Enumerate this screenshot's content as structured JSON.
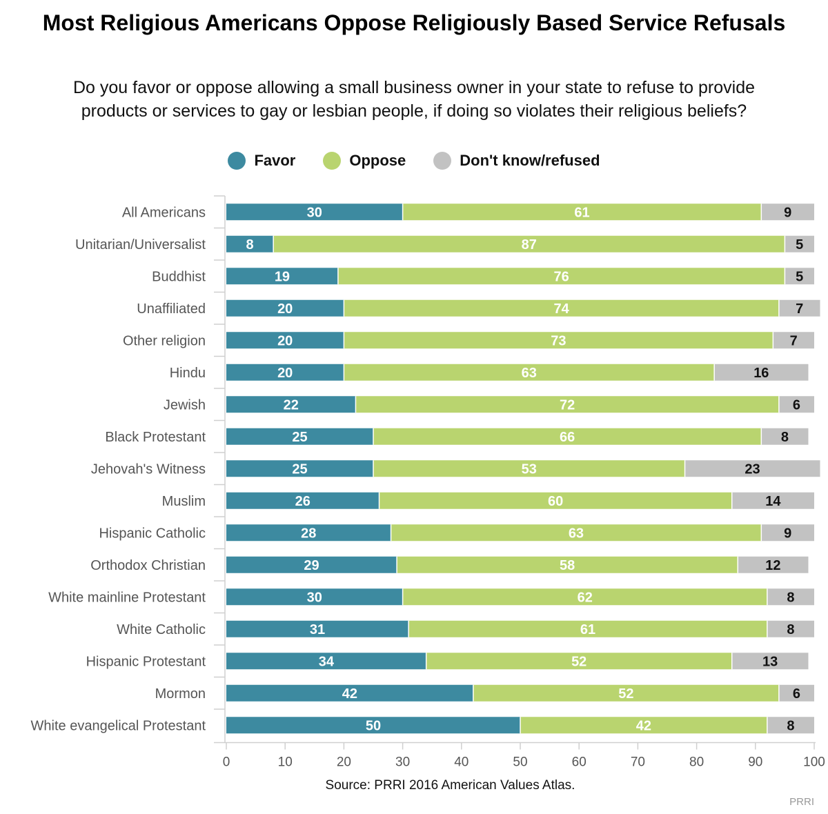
{
  "chart_data": {
    "type": "bar",
    "orientation": "horizontal",
    "stacked": true,
    "title": "Most Religious Americans Oppose Religiously Based Service Refusals",
    "subtitle": "Do you favor or oppose allowing a small business owner in your state to refuse to provide products or services to gay or lesbian people, if doing so violates their religious beliefs?",
    "categories": [
      "All Americans",
      "Unitarian/Universalist",
      "Buddhist",
      "Unaffiliated",
      "Other religion",
      "Hindu",
      "Jewish",
      "Black Protestant",
      "Jehovah's Witness",
      "Muslim",
      "Hispanic Catholic",
      "Orthodox Christian",
      "White mainline Protestant",
      "White Catholic",
      "Hispanic Protestant",
      "Mormon",
      "White evangelical Protestant"
    ],
    "series": [
      {
        "name": "Favor",
        "color": "#3d8aa0",
        "label_color": "#ffffff",
        "values": [
          30,
          8,
          19,
          20,
          20,
          20,
          22,
          25,
          25,
          26,
          28,
          29,
          30,
          31,
          34,
          42,
          50
        ]
      },
      {
        "name": "Oppose",
        "color": "#b9d46f",
        "label_color": "#ffffff",
        "values": [
          61,
          87,
          76,
          74,
          73,
          63,
          72,
          66,
          53,
          60,
          63,
          58,
          62,
          61,
          52,
          52,
          42
        ]
      },
      {
        "name": "Don't know/refused",
        "color": "#c2c2c2",
        "label_color": "#111111",
        "values": [
          9,
          5,
          5,
          7,
          7,
          16,
          6,
          8,
          23,
          14,
          9,
          12,
          8,
          8,
          13,
          6,
          8
        ]
      }
    ],
    "xlim": [
      0,
      100
    ],
    "xticks": [
      0,
      10,
      20,
      30,
      40,
      50,
      60,
      70,
      80,
      90,
      100
    ],
    "xlabel": "",
    "ylabel": "",
    "legend_position": "top",
    "source": "Source: PRRI 2016 American Values Atlas.",
    "credit": "PRRI"
  }
}
